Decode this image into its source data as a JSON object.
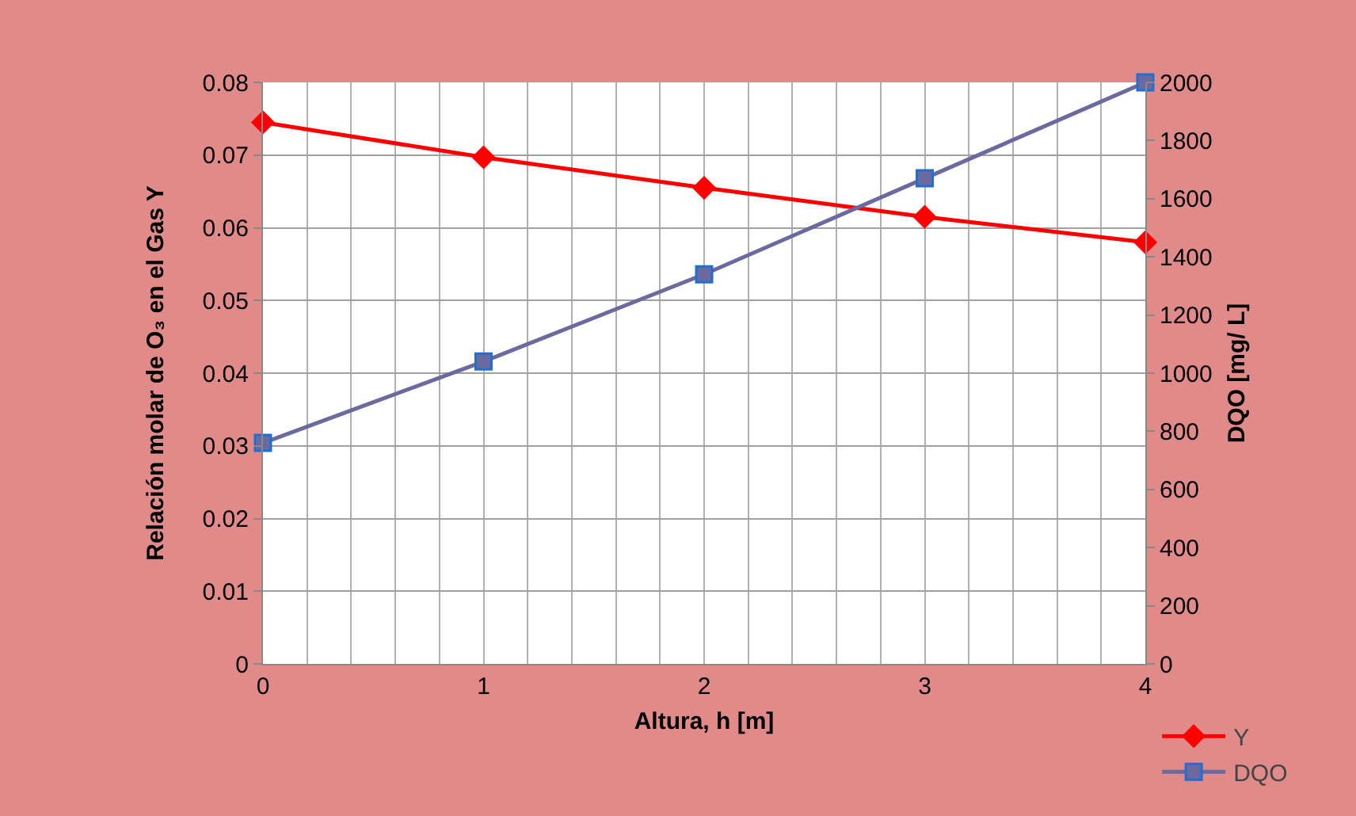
{
  "chart_data": {
    "type": "line",
    "xlabel": "Altura, h [m]",
    "ylabel": "Relación molar de O₃ en el Gas Y",
    "y2label": "DQO [mg/ L]",
    "x": [
      0,
      1,
      2,
      3,
      4
    ],
    "series": [
      {
        "name": "Y",
        "color": "#ff0000",
        "marker": "diamond",
        "values": [
          0.0745,
          0.0697,
          0.0655,
          0.0615,
          0.058
        ]
      },
      {
        "name": "DQO",
        "color": "#6a6aa0",
        "marker": "square",
        "axis": "y2",
        "values": [
          760,
          1040,
          1340,
          1670,
          2000
        ]
      }
    ],
    "xlim": [
      0,
      4
    ],
    "xticks": [
      0,
      {
        "value": 0.2,
        "label": null
      },
      {
        "value": 0.4,
        "label": null
      },
      {
        "value": 0.6,
        "label": null
      },
      {
        "value": 0.8,
        "label": null
      },
      1,
      {
        "value": 1.2,
        "label": null
      },
      {
        "value": 1.4,
        "label": null
      },
      {
        "value": 1.6,
        "label": null
      },
      {
        "value": 1.8,
        "label": null
      },
      2,
      {
        "value": 2.2,
        "label": null
      },
      {
        "value": 2.4,
        "label": null
      },
      {
        "value": 2.6,
        "label": null
      },
      {
        "value": 2.8,
        "label": null
      },
      3,
      {
        "value": 3.2,
        "label": null
      },
      {
        "value": 3.4,
        "label": null
      },
      {
        "value": 3.6,
        "label": null
      },
      {
        "value": 3.8,
        "label": null
      },
      4
    ],
    "ylim": [
      0,
      0.08
    ],
    "yticks": [
      0,
      0.01,
      0.02,
      0.03,
      0.04,
      0.05,
      0.06,
      0.07,
      0.08
    ],
    "y2lim": [
      0,
      2000
    ],
    "y2ticks": [
      0,
      200,
      400,
      600,
      800,
      1000,
      1200,
      1400,
      1600,
      1800,
      2000
    ],
    "grid": true,
    "legend": "bottom right"
  }
}
